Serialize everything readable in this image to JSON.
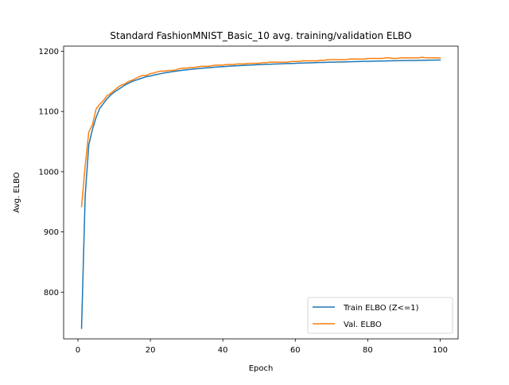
{
  "chart_data": {
    "type": "line",
    "title": "Standard FashionMNIST_Basic_10 avg. training/validation ELBO",
    "xlabel": "Epoch",
    "ylabel": "Avg. ELBO",
    "xlim": [
      -3.95,
      104.95
    ],
    "ylim": [
      722.5,
      1208.5
    ],
    "xticks": [
      0,
      20,
      40,
      60,
      80,
      100
    ],
    "yticks": [
      800,
      900,
      1000,
      1100,
      1200
    ],
    "grid": false,
    "legend_position": "lower-right",
    "x": [
      1,
      2,
      3,
      4,
      5,
      6,
      7,
      8,
      9,
      10,
      11,
      12,
      13,
      14,
      15,
      16,
      17,
      18,
      19,
      20,
      21,
      22,
      23,
      24,
      25,
      26,
      27,
      28,
      29,
      30,
      31,
      32,
      33,
      34,
      35,
      36,
      37,
      38,
      39,
      40,
      41,
      42,
      43,
      44,
      45,
      46,
      47,
      48,
      49,
      50,
      51,
      52,
      53,
      54,
      55,
      56,
      57,
      58,
      59,
      60,
      61,
      62,
      63,
      64,
      65,
      66,
      67,
      68,
      69,
      70,
      71,
      72,
      73,
      74,
      75,
      76,
      77,
      78,
      79,
      80,
      81,
      82,
      83,
      84,
      85,
      86,
      87,
      88,
      89,
      90,
      91,
      92,
      93,
      94,
      95,
      96,
      97,
      98,
      99,
      100
    ],
    "series": [
      {
        "name": "Train ELBO (Z<=1)",
        "color": "#1f77b4",
        "values": [
          740,
          960,
          1045,
          1070,
          1090,
          1105,
          1113,
          1121,
          1127,
          1132,
          1136,
          1140,
          1144,
          1147,
          1150,
          1152,
          1154,
          1156,
          1158,
          1159,
          1160.5,
          1161.8,
          1163,
          1164.1,
          1165.1,
          1166,
          1166.9,
          1167.7,
          1168.5,
          1169.2,
          1169.9,
          1170.5,
          1171.1,
          1171.7,
          1172.2,
          1172.7,
          1173.2,
          1173.7,
          1174.1,
          1174.5,
          1174.9,
          1175.3,
          1175.6,
          1176,
          1176.3,
          1176.6,
          1176.9,
          1177.2,
          1177.5,
          1177.8,
          1178,
          1178.3,
          1178.5,
          1178.8,
          1179,
          1179.2,
          1179.4,
          1179.6,
          1179.8,
          1180,
          1180.2,
          1180.4,
          1180.6,
          1180.8,
          1181,
          1181.2,
          1181.4,
          1181.5,
          1181.7,
          1181.9,
          1182,
          1182.2,
          1182.3,
          1182.5,
          1182.6,
          1182.8,
          1182.9,
          1183,
          1183.2,
          1183.3,
          1183.4,
          1183.6,
          1183.7,
          1183.8,
          1183.9,
          1184,
          1184.2,
          1184.3,
          1184.4,
          1184.5,
          1184.6,
          1184.7,
          1184.8,
          1184.9,
          1185,
          1185.1,
          1185.2,
          1185.3,
          1185.4,
          1185.5
        ]
      },
      {
        "name": "Val. ELBO",
        "color": "#ff7f0e",
        "values": [
          942,
          1010,
          1066,
          1078,
          1104,
          1112,
          1118,
          1126,
          1130,
          1135,
          1140,
          1144,
          1146,
          1150,
          1152,
          1155,
          1158,
          1160,
          1160,
          1163,
          1164,
          1166,
          1167,
          1167,
          1168,
          1168,
          1169,
          1171,
          1172,
          1172,
          1173,
          1173,
          1174,
          1175,
          1175,
          1175,
          1176,
          1177,
          1177,
          1177,
          1178,
          1178,
          1178,
          1179,
          1179,
          1179,
          1180,
          1180,
          1180,
          1180,
          1181,
          1181,
          1182,
          1182,
          1182,
          1182,
          1182,
          1182,
          1183,
          1183,
          1183,
          1184,
          1184,
          1184,
          1184,
          1184,
          1185,
          1185,
          1186,
          1186,
          1186,
          1186,
          1186,
          1186,
          1187,
          1187,
          1187,
          1187,
          1187,
          1188,
          1188,
          1188,
          1188,
          1188,
          1189,
          1189,
          1188,
          1188,
          1189,
          1189,
          1189,
          1189,
          1189,
          1189,
          1190,
          1189,
          1189,
          1189,
          1189,
          1189
        ]
      }
    ]
  }
}
